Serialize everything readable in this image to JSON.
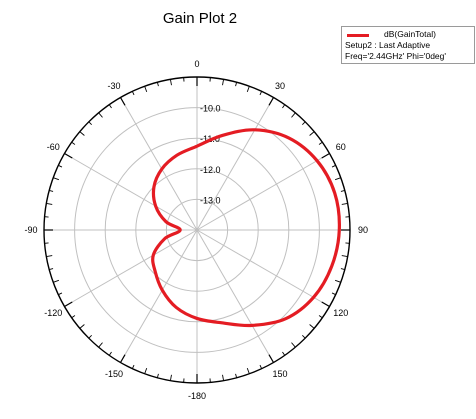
{
  "chart_data": {
    "type": "polar-line",
    "title": "Gain Plot 2",
    "angle_unit": "deg",
    "angle_direction": "clockwise",
    "angle_zero": "top",
    "angle_tick_labels": [
      {
        "angle": 0,
        "label": "0"
      },
      {
        "angle": 30,
        "label": "30"
      },
      {
        "angle": 60,
        "label": "60"
      },
      {
        "angle": 90,
        "label": "90"
      },
      {
        "angle": 120,
        "label": "120"
      },
      {
        "angle": 150,
        "label": "150"
      },
      {
        "angle": 180,
        "label": "-180"
      },
      {
        "angle": -150,
        "label": "-150"
      },
      {
        "angle": -120,
        "label": "-120"
      },
      {
        "angle": -90,
        "label": "-90"
      },
      {
        "angle": -60,
        "label": "-60"
      },
      {
        "angle": -30,
        "label": "-30"
      }
    ],
    "radial_range": [
      -14,
      -9
    ],
    "radial_ticks": [
      {
        "value": -10,
        "label": "-10.0"
      },
      {
        "value": -11,
        "label": "-11.0"
      },
      {
        "value": -12,
        "label": "-12.0"
      },
      {
        "value": -13,
        "label": "-13.0"
      }
    ],
    "grid": true,
    "legend": {
      "placement": "top-right",
      "series_label": "dB(GainTotal)",
      "lines": [
        "Setup2 : Last Adaptive",
        "Freq='2.44GHz' Phi='0deg'"
      ]
    },
    "series": [
      {
        "name": "dB(GainTotal)",
        "color": "#e41c23",
        "theta": [
          0,
          15,
          30,
          45,
          60,
          75,
          90,
          105,
          120,
          135,
          150,
          165,
          180,
          -165,
          -150,
          -135,
          -120,
          -105,
          -90,
          -75,
          -60,
          -45,
          -30,
          -15
        ],
        "r": [
          -11.26,
          -10.8,
          -10.22,
          -9.75,
          -9.47,
          -9.34,
          -9.35,
          -9.44,
          -9.6,
          -9.9,
          -10.4,
          -10.86,
          -11.11,
          -11.38,
          -11.73,
          -12.07,
          -12.35,
          -12.91,
          -13.45,
          -12.95,
          -12.44,
          -12.01,
          -11.7,
          -11.47
        ]
      }
    ]
  }
}
